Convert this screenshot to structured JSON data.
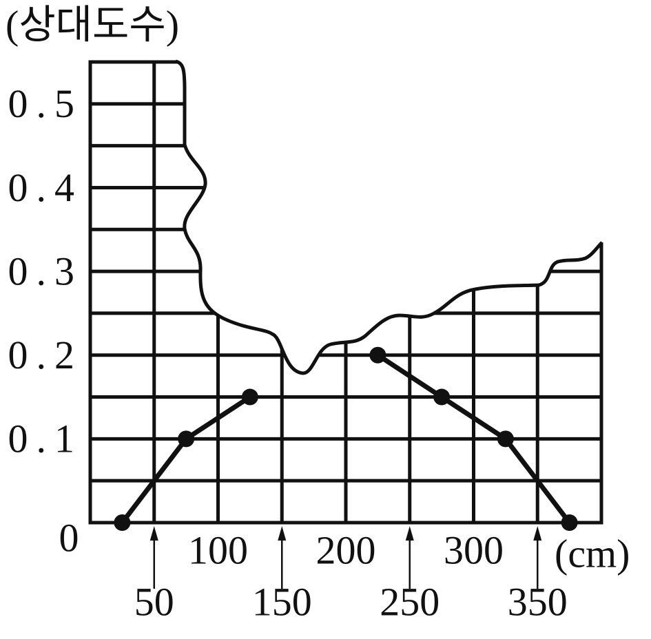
{
  "chart_data": {
    "type": "line",
    "y_label": "(상대도수)",
    "x_label": "(cm)",
    "x": [
      25,
      75,
      125,
      175,
      225,
      275,
      325,
      375
    ],
    "values": [
      0,
      0.1,
      0.15,
      null,
      0.2,
      0.15,
      0.1,
      0
    ],
    "color": "#111111",
    "xlim": [
      0,
      400
    ],
    "ylim": [
      0,
      0.55
    ],
    "xticks": [
      50,
      100,
      150,
      200,
      250,
      300,
      350
    ],
    "yticks": [
      0,
      0.1,
      0.2,
      0.3,
      0.4,
      0.5
    ],
    "y_minor_ticks": [
      0.05,
      0.15,
      0.25,
      0.35,
      0.45
    ],
    "grid": true
  }
}
